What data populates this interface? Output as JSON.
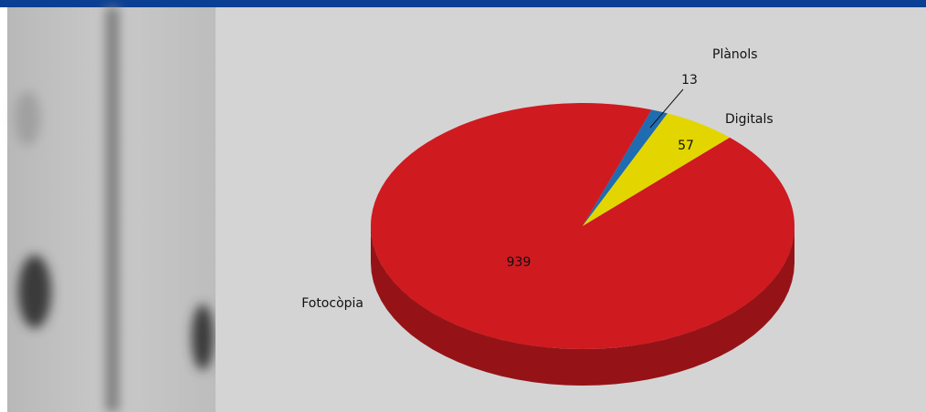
{
  "chart_data": {
    "type": "pie",
    "categories": [
      "Plànols",
      "Digitals",
      "Fotocòpia"
    ],
    "values": [
      13,
      57,
      939
    ],
    "colors": [
      "#1f6db0",
      "#e3d600",
      "#cf1a20"
    ]
  }
}
